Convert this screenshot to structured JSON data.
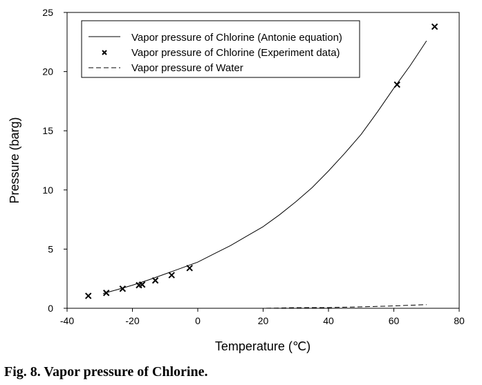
{
  "chart_data": {
    "type": "line",
    "title": "",
    "xlabel": "Temperature (℃)",
    "ylabel": "Pressure (barg)",
    "xlim": [
      -40,
      80
    ],
    "ylim": [
      0,
      25
    ],
    "xticks": [
      -40,
      -20,
      0,
      20,
      40,
      60,
      80
    ],
    "yticks": [
      0,
      5,
      10,
      15,
      20,
      25
    ],
    "grid": false,
    "legend_position": "top-left",
    "series": [
      {
        "name": "Vapor pressure of Chlorine (Antonie equation)",
        "style": "solid",
        "x": [
          -29,
          -25,
          -20,
          -15,
          -10,
          -5,
          0,
          5,
          10,
          15,
          20,
          25,
          30,
          35,
          40,
          45,
          50,
          55,
          60,
          65,
          70
        ],
        "y": [
          1.25,
          1.55,
          1.95,
          2.4,
          2.9,
          3.4,
          3.9,
          4.6,
          5.3,
          6.1,
          6.9,
          7.9,
          9.0,
          10.2,
          11.6,
          13.1,
          14.7,
          16.6,
          18.6,
          20.5,
          22.6
        ]
      },
      {
        "name": "Vapor pressure of Chlorine (Experiment data)",
        "style": "marker-x",
        "x": [
          -33.5,
          -28,
          -23,
          -18,
          -17,
          -13,
          -8,
          -2.5,
          61,
          72.5
        ],
        "y": [
          1.05,
          1.3,
          1.65,
          1.95,
          2.0,
          2.35,
          2.8,
          3.4,
          18.9,
          23.8
        ]
      },
      {
        "name": "Vapor pressure of Water",
        "style": "dashed",
        "x": [
          0,
          10,
          20,
          30,
          40,
          50,
          60,
          70
        ],
        "y": [
          0.0,
          0.0,
          0.0,
          0.05,
          0.06,
          0.12,
          0.2,
          0.31
        ]
      }
    ]
  },
  "caption": "Fig. 8. Vapor pressure of Chlorine."
}
